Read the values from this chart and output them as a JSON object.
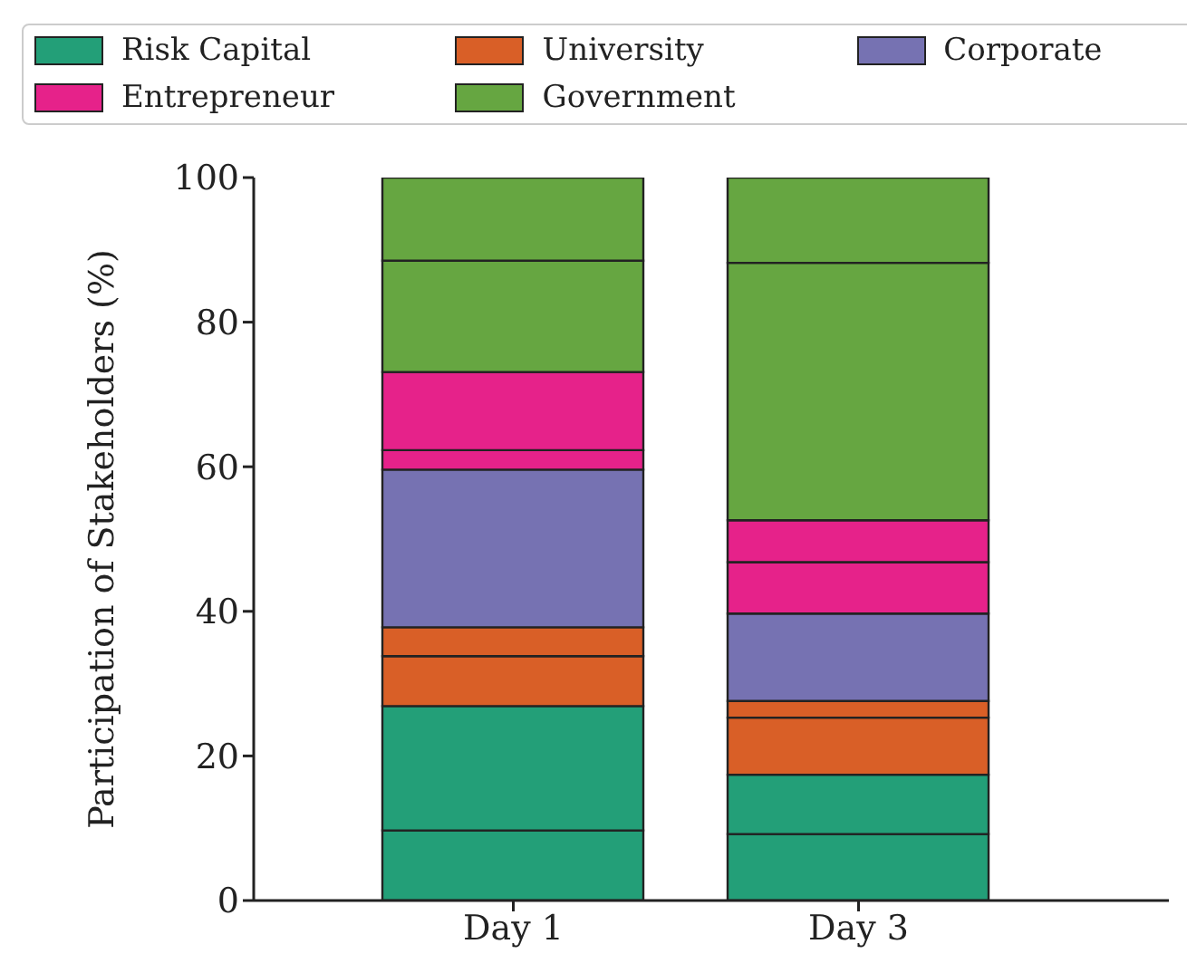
{
  "chart_data": {
    "type": "bar",
    "stacked": true,
    "ylabel": "Participation of Stakeholders (%)",
    "categories": [
      "Day 1",
      "Day 3"
    ],
    "ylim": [
      0,
      100
    ],
    "yticks": [
      0,
      20,
      40,
      60,
      80,
      100
    ],
    "legend": "top",
    "grid": false,
    "series": [
      {
        "name": "Risk Capital",
        "color": "#239f78",
        "values": [
          9.7,
          9.2
        ]
      },
      {
        "color": "#239f78",
        "values": [
          17.2,
          8.2
        ]
      },
      {
        "name": "University",
        "color": "#d95f27",
        "values": [
          6.9,
          7.9
        ]
      },
      {
        "color": "#d95f27",
        "values": [
          4.0,
          2.3
        ]
      },
      {
        "name": "Corporate",
        "color": "#7672b2",
        "values": [
          21.8,
          12.1
        ]
      },
      {
        "name": "Entrepreneur",
        "color": "#e6228a",
        "values": [
          2.7,
          7.1
        ]
      },
      {
        "color": "#e6228a",
        "values": [
          10.8,
          5.8
        ]
      },
      {
        "name": "Government",
        "color": "#66a641",
        "values": [
          15.4,
          35.6
        ]
      },
      {
        "color": "#66a641",
        "values": [
          11.5,
          11.8
        ]
      }
    ]
  }
}
